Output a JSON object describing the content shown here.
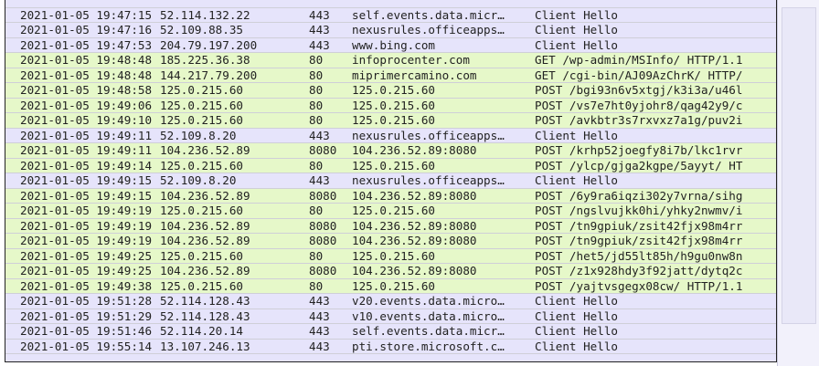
{
  "packet_list": {
    "rows": [
      {
        "cells": [
          "2021-01-05 19:47:15",
          "52.114.132.22",
          "443",
          "self.events.data.micr…",
          "Client Hello"
        ],
        "color": "#e6e4fb"
      },
      {
        "cells": [
          "2021-01-05 19:47:16",
          "52.109.88.35",
          "443",
          "nexusrules.officeapps…",
          "Client Hello"
        ],
        "color": "#e6e4fb"
      },
      {
        "cells": [
          "2021-01-05 19:47:53",
          "204.79.197.200",
          "443",
          "www.bing.com",
          "Client Hello"
        ],
        "color": "#e6e4fb"
      },
      {
        "cells": [
          "2021-01-05 19:48:48",
          "185.225.36.38",
          "80",
          "infoprocenter.com",
          "GET /wp-admin/MSInfo/ HTTP/1.1"
        ],
        "color": "#e6f8c9"
      },
      {
        "cells": [
          "2021-01-05 19:48:48",
          "144.217.79.200",
          "80",
          "miprimercamino.com",
          "GET /cgi-bin/AJ09AzChrK/ HTTP/"
        ],
        "color": "#e6f8c9"
      },
      {
        "cells": [
          "2021-01-05 19:48:58",
          "125.0.215.60",
          "80",
          "125.0.215.60",
          "POST /bgi93n6v5xtgj/k3i3a/u46l"
        ],
        "color": "#e6f8c9"
      },
      {
        "cells": [
          "2021-01-05 19:49:06",
          "125.0.215.60",
          "80",
          "125.0.215.60",
          "POST /vs7e7ht0yjohr8/qag42y9/c"
        ],
        "color": "#e6f8c9"
      },
      {
        "cells": [
          "2021-01-05 19:49:10",
          "125.0.215.60",
          "80",
          "125.0.215.60",
          "POST /avkbtr3s7rxvxz7a1g/puv2i"
        ],
        "color": "#e6f8c9"
      },
      {
        "cells": [
          "2021-01-05 19:49:11",
          "52.109.8.20",
          "443",
          "nexusrules.officeapps…",
          "Client Hello"
        ],
        "color": "#e6e4fb"
      },
      {
        "cells": [
          "2021-01-05 19:49:11",
          "104.236.52.89",
          "8080",
          "104.236.52.89:8080",
          "POST /krhp52joegfy8i7b/lkc1rvr"
        ],
        "color": "#e6f8c9"
      },
      {
        "cells": [
          "2021-01-05 19:49:14",
          "125.0.215.60",
          "80",
          "125.0.215.60",
          "POST /ylcp/gjga2kgpe/5ayyt/ HT"
        ],
        "color": "#e6f8c9"
      },
      {
        "cells": [
          "2021-01-05 19:49:15",
          "52.109.8.20",
          "443",
          "nexusrules.officeapps…",
          "Client Hello"
        ],
        "color": "#e6e4fb"
      },
      {
        "cells": [
          "2021-01-05 19:49:15",
          "104.236.52.89",
          "8080",
          "104.236.52.89:8080",
          "POST /6y9ra6iqzi302y7vrna/sihg"
        ],
        "color": "#e6f8c9"
      },
      {
        "cells": [
          "2021-01-05 19:49:19",
          "125.0.215.60",
          "80",
          "125.0.215.60",
          "POST /ngslvujkk0hi/yhky2nwmv/i"
        ],
        "color": "#e6f8c9"
      },
      {
        "cells": [
          "2021-01-05 19:49:19",
          "104.236.52.89",
          "8080",
          "104.236.52.89:8080",
          "POST /tn9gpiuk/zsit42fjx98m4rr"
        ],
        "color": "#e6f8c9"
      },
      {
        "cells": [
          "2021-01-05 19:49:19",
          "104.236.52.89",
          "8080",
          "104.236.52.89:8080",
          "POST /tn9gpiuk/zsit42fjx98m4rr"
        ],
        "color": "#e6f8c9"
      },
      {
        "cells": [
          "2021-01-05 19:49:25",
          "125.0.215.60",
          "80",
          "125.0.215.60",
          "POST /het5/jd55lt85h/h9gu0nw8n"
        ],
        "color": "#e6f8c9"
      },
      {
        "cells": [
          "2021-01-05 19:49:25",
          "104.236.52.89",
          "8080",
          "104.236.52.89:8080",
          "POST /z1x928hdy3f92jatt/dytq2c"
        ],
        "color": "#e6f8c9"
      },
      {
        "cells": [
          "2021-01-05 19:49:38",
          "125.0.215.60",
          "80",
          "125.0.215.60",
          "POST /yajtvsgegx08cw/ HTTP/1.1"
        ],
        "color": "#e6f8c9"
      },
      {
        "cells": [
          "2021-01-05 19:51:28",
          "52.114.128.43",
          "443",
          "v20.events.data.micro…",
          "Client Hello"
        ],
        "color": "#e6e4fb"
      },
      {
        "cells": [
          "2021-01-05 19:51:29",
          "52.114.128.43",
          "443",
          "v10.events.data.micro…",
          "Client Hello"
        ],
        "color": "#e6e4fb"
      },
      {
        "cells": [
          "2021-01-05 19:51:46",
          "52.114.20.14",
          "443",
          "self.events.data.micr…",
          "Client Hello"
        ],
        "color": "#e6e4fb"
      },
      {
        "cells": [
          "2021-01-05 19:55:14",
          "13.107.246.13",
          "443",
          "pti.store.microsoft.c…",
          "Client Hello"
        ],
        "color": "#e6e4fb"
      }
    ]
  }
}
